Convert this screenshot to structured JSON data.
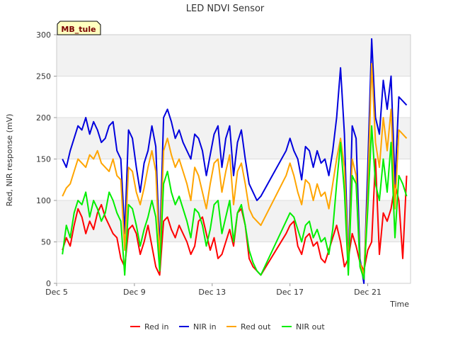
{
  "chart_data": {
    "type": "line",
    "title": "LED NDVI Sensor",
    "badge": "MB_tule",
    "xlabel": "Time",
    "ylabel": "Red, NIR response (mV)",
    "xlim": [
      "Dec 5",
      "Dec 23.2"
    ],
    "x_ticks": [
      "Dec 5",
      "Dec 9",
      "Dec 13",
      "Dec 17",
      "Dec 21"
    ],
    "x_tick_days": [
      5,
      9,
      13,
      17,
      21
    ],
    "ylim": [
      0,
      300
    ],
    "y_ticks": [
      0,
      50,
      100,
      150,
      200,
      250,
      300
    ],
    "grid": true,
    "band_colors": [
      "#f2f2f2",
      "#ffffff"
    ],
    "legend_position": "bottom",
    "series": [
      {
        "name": "Red in",
        "color": "#ff0000",
        "x": [
          5.3,
          5.5,
          5.7,
          5.9,
          6.1,
          6.3,
          6.5,
          6.7,
          6.9,
          7.1,
          7.3,
          7.5,
          7.7,
          7.9,
          8.1,
          8.3,
          8.5,
          8.7,
          8.9,
          9.1,
          9.3,
          9.5,
          9.7,
          9.9,
          10.1,
          10.3,
          10.5,
          10.7,
          10.9,
          11.1,
          11.3,
          11.5,
          11.7,
          11.9,
          12.1,
          12.3,
          12.5,
          12.7,
          12.9,
          13.1,
          13.3,
          13.5,
          13.7,
          13.9,
          14.1,
          14.3,
          14.5,
          14.7,
          14.9,
          15.1,
          15.3,
          15.5,
          16.8,
          17.0,
          17.2,
          17.4,
          17.6,
          17.8,
          18.0,
          18.2,
          18.4,
          18.6,
          18.8,
          19.0,
          19.2,
          19.4,
          19.6,
          19.8,
          20.0,
          20.2,
          20.4,
          20.6,
          20.8,
          21.0,
          21.2,
          21.4,
          21.6,
          21.8,
          22.0,
          22.2,
          22.4,
          22.6,
          22.8,
          23.0
        ],
        "y": [
          40,
          55,
          45,
          70,
          90,
          80,
          60,
          75,
          65,
          85,
          95,
          80,
          70,
          60,
          55,
          30,
          20,
          65,
          70,
          60,
          35,
          50,
          70,
          45,
          20,
          10,
          75,
          80,
          65,
          55,
          70,
          60,
          50,
          35,
          45,
          75,
          80,
          60,
          40,
          55,
          30,
          35,
          50,
          65,
          45,
          85,
          90,
          70,
          30,
          20,
          15,
          10,
          60,
          70,
          75,
          45,
          35,
          55,
          60,
          45,
          50,
          30,
          25,
          40,
          55,
          70,
          50,
          20,
          30,
          60,
          45,
          25,
          15,
          40,
          50,
          150,
          35,
          85,
          75,
          90,
          120,
          100,
          30,
          130
        ]
      },
      {
        "name": "NIR in",
        "color": "#0000dd",
        "x": [
          5.3,
          5.5,
          5.7,
          5.9,
          6.1,
          6.3,
          6.5,
          6.7,
          6.9,
          7.1,
          7.3,
          7.5,
          7.7,
          7.9,
          8.1,
          8.3,
          8.5,
          8.7,
          8.9,
          9.1,
          9.3,
          9.5,
          9.7,
          9.9,
          10.1,
          10.3,
          10.5,
          10.7,
          10.9,
          11.1,
          11.3,
          11.5,
          11.7,
          11.9,
          12.1,
          12.3,
          12.5,
          12.7,
          12.9,
          13.1,
          13.3,
          13.5,
          13.7,
          13.9,
          14.1,
          14.3,
          14.5,
          14.7,
          14.9,
          15.1,
          15.3,
          15.5,
          16.8,
          17.0,
          17.2,
          17.4,
          17.6,
          17.8,
          18.0,
          18.2,
          18.4,
          18.6,
          18.8,
          19.0,
          19.2,
          19.4,
          19.6,
          19.8,
          20.0,
          20.2,
          20.4,
          20.6,
          20.8,
          21.0,
          21.2,
          21.4,
          21.6,
          21.8,
          22.0,
          22.2,
          22.4,
          22.6,
          22.8,
          23.0
        ],
        "y": [
          150,
          140,
          160,
          175,
          190,
          185,
          200,
          180,
          195,
          185,
          170,
          175,
          190,
          195,
          160,
          150,
          60,
          185,
          175,
          140,
          110,
          145,
          160,
          190,
          165,
          40,
          200,
          210,
          195,
          175,
          185,
          170,
          160,
          150,
          180,
          175,
          160,
          130,
          155,
          180,
          190,
          140,
          175,
          190,
          130,
          170,
          185,
          150,
          120,
          110,
          100,
          105,
          160,
          175,
          160,
          150,
          125,
          165,
          160,
          140,
          160,
          145,
          150,
          130,
          160,
          200,
          260,
          180,
          20,
          190,
          175,
          30,
          0,
          140,
          295,
          200,
          180,
          245,
          210,
          250,
          120,
          225,
          220,
          215
        ]
      },
      {
        "name": "Red out",
        "color": "#ffa500",
        "x": [
          5.3,
          5.5,
          5.7,
          5.9,
          6.1,
          6.3,
          6.5,
          6.7,
          6.9,
          7.1,
          7.3,
          7.5,
          7.7,
          7.9,
          8.1,
          8.3,
          8.5,
          8.7,
          8.9,
          9.1,
          9.3,
          9.5,
          9.7,
          9.9,
          10.1,
          10.3,
          10.5,
          10.7,
          10.9,
          11.1,
          11.3,
          11.5,
          11.7,
          11.9,
          12.1,
          12.3,
          12.5,
          12.7,
          12.9,
          13.1,
          13.3,
          13.5,
          13.7,
          13.9,
          14.1,
          14.3,
          14.5,
          14.7,
          14.9,
          15.1,
          15.3,
          15.5,
          16.8,
          17.0,
          17.2,
          17.4,
          17.6,
          17.8,
          18.0,
          18.2,
          18.4,
          18.6,
          18.8,
          19.0,
          19.2,
          19.4,
          19.6,
          19.8,
          20.0,
          20.2,
          20.4,
          20.6,
          20.8,
          21.0,
          21.2,
          21.4,
          21.6,
          21.8,
          22.0,
          22.2,
          22.4,
          22.6,
          22.8,
          23.0
        ],
        "y": [
          105,
          115,
          120,
          135,
          150,
          145,
          140,
          155,
          150,
          160,
          145,
          140,
          135,
          150,
          130,
          125,
          40,
          140,
          135,
          110,
          95,
          115,
          140,
          160,
          135,
          30,
          160,
          175,
          155,
          140,
          150,
          135,
          120,
          100,
          140,
          130,
          110,
          90,
          120,
          145,
          150,
          110,
          135,
          155,
          95,
          135,
          145,
          120,
          90,
          80,
          75,
          70,
          130,
          145,
          130,
          110,
          95,
          125,
          120,
          100,
          120,
          105,
          110,
          90,
          120,
          150,
          175,
          140,
          20,
          150,
          130,
          25,
          10,
          110,
          265,
          170,
          140,
          200,
          160,
          210,
          90,
          185,
          180,
          175
        ]
      },
      {
        "name": "NIR out",
        "color": "#00ee00",
        "x": [
          5.3,
          5.5,
          5.7,
          5.9,
          6.1,
          6.3,
          6.5,
          6.7,
          6.9,
          7.1,
          7.3,
          7.5,
          7.7,
          7.9,
          8.1,
          8.3,
          8.5,
          8.7,
          8.9,
          9.1,
          9.3,
          9.5,
          9.7,
          9.9,
          10.1,
          10.3,
          10.5,
          10.7,
          10.9,
          11.1,
          11.3,
          11.5,
          11.7,
          11.9,
          12.1,
          12.3,
          12.5,
          12.7,
          12.9,
          13.1,
          13.3,
          13.5,
          13.7,
          13.9,
          14.1,
          14.3,
          14.5,
          14.7,
          14.9,
          15.1,
          15.3,
          15.5,
          16.8,
          17.0,
          17.2,
          17.4,
          17.6,
          17.8,
          18.0,
          18.2,
          18.4,
          18.6,
          18.8,
          19.0,
          19.2,
          19.4,
          19.6,
          19.8,
          20.0,
          20.2,
          20.4,
          20.6,
          20.8,
          21.0,
          21.2,
          21.4,
          21.6,
          21.8,
          22.0,
          22.2,
          22.4,
          22.6,
          22.8,
          23.0
        ],
        "y": [
          35,
          70,
          55,
          85,
          100,
          95,
          110,
          80,
          100,
          90,
          75,
          85,
          110,
          100,
          85,
          75,
          10,
          95,
          90,
          70,
          45,
          65,
          80,
          100,
          80,
          15,
          120,
          135,
          110,
          95,
          105,
          90,
          75,
          55,
          90,
          85,
          70,
          45,
          65,
          95,
          100,
          60,
          80,
          100,
          50,
          85,
          95,
          70,
          40,
          25,
          15,
          10,
          75,
          85,
          80,
          65,
          50,
          70,
          75,
          55,
          65,
          50,
          55,
          35,
          65,
          120,
          170,
          110,
          10,
          130,
          120,
          20,
          5,
          90,
          190,
          120,
          100,
          150,
          110,
          170,
          55,
          130,
          120,
          105
        ]
      }
    ]
  }
}
